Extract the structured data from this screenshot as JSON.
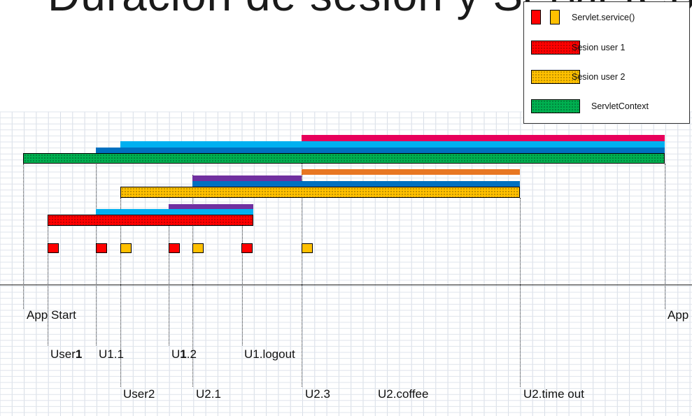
{
  "title": "Duración de sesión y ServletContext",
  "legend": {
    "items": [
      {
        "label": "Servlet.service()",
        "colors": [
          "#ff0000",
          "#ffc000"
        ]
      },
      {
        "label": "Sesion user 1",
        "colors": [
          "#ff0000"
        ]
      },
      {
        "label": "Sesion user 2",
        "colors": [
          "#ffc000"
        ]
      },
      {
        "label": "ServletContext",
        "colors": [
          "#00b050"
        ]
      }
    ]
  },
  "colors": {
    "red": "#ff0000",
    "orange_yellow": "#ffc000",
    "green": "#00b050",
    "magenta": "#e8005a",
    "cyan": "#00b0f0",
    "blue": "#0070c0",
    "purple": "#7030a0",
    "orange": "#e87722"
  },
  "timeline_labels": {
    "app_start": "App Start",
    "app_end": "App",
    "user1_prefix": "User",
    "user1_num": "1",
    "u1_1": "U1.1",
    "u1_2_prefix": "U",
    "u1_2_num": "1",
    "u1_2_suffix": ".2",
    "u1_logout": "U1.logout",
    "user2": "User2",
    "u2_1": "U2.1",
    "u2_3": "U2.3",
    "u2_coffee": "U2.coffee",
    "u2_timeout": "U2.time out"
  }
}
